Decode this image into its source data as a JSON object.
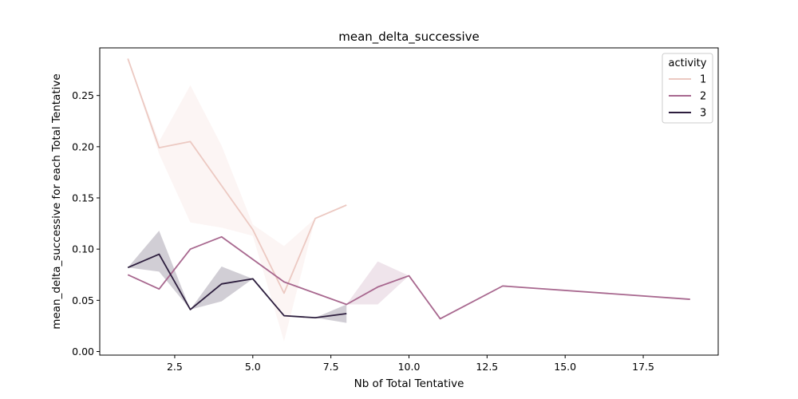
{
  "chart_data": {
    "type": "line",
    "title": "mean_delta_successive",
    "xlabel": "Nb of Total Tentative",
    "ylabel": "mean_delta_successive for each Total Tentative",
    "xlim": [
      0.1,
      19.9
    ],
    "ylim": [
      -0.0035,
      0.2965
    ],
    "x_ticks": [
      2.5,
      5.0,
      7.5,
      10.0,
      12.5,
      15.0,
      17.5
    ],
    "x_tick_labels": [
      "2.5",
      "5.0",
      "7.5",
      "10.0",
      "12.5",
      "15.0",
      "17.5"
    ],
    "y_ticks": [
      0.0,
      0.05,
      0.1,
      0.15,
      0.2,
      0.25
    ],
    "y_tick_labels": [
      "0.00",
      "0.05",
      "0.10",
      "0.15",
      "0.20",
      "0.25"
    ],
    "grid": false,
    "legend": {
      "title": "activity",
      "position": "top-right"
    },
    "series": [
      {
        "name": "1",
        "color": "#ecc9c2",
        "x": [
          1,
          2,
          3,
          4,
          5,
          6,
          7,
          8
        ],
        "y": [
          0.286,
          0.199,
          0.205,
          0.162,
          0.119,
          0.057,
          0.13,
          0.143
        ],
        "band_lower": [
          0.286,
          0.193,
          0.126,
          0.121,
          0.113,
          0.01,
          0.13,
          0.143
        ],
        "band_upper": [
          0.286,
          0.205,
          0.26,
          0.201,
          0.124,
          0.103,
          0.13,
          0.143
        ]
      },
      {
        "name": "2",
        "color": "#a8688f",
        "x": [
          1,
          2,
          3,
          4,
          5,
          6,
          7,
          8,
          9,
          10,
          11,
          13,
          19
        ],
        "y": [
          0.075,
          0.061,
          0.1,
          0.112,
          0.09,
          0.068,
          0.057,
          0.046,
          0.063,
          0.074,
          0.032,
          0.064,
          0.051
        ],
        "band_lower": [
          0.075,
          0.061,
          0.1,
          0.112,
          0.09,
          0.068,
          0.057,
          0.046,
          0.046,
          0.074,
          0.032,
          0.064,
          0.051
        ],
        "band_upper": [
          0.075,
          0.061,
          0.1,
          0.112,
          0.09,
          0.068,
          0.057,
          0.046,
          0.088,
          0.074,
          0.032,
          0.064,
          0.051
        ]
      },
      {
        "name": "3",
        "color": "#2d1e3e",
        "x": [
          1,
          2,
          3,
          4,
          5,
          6,
          7,
          8
        ],
        "y": [
          0.082,
          0.095,
          0.041,
          0.066,
          0.071,
          0.035,
          0.033,
          0.037
        ],
        "band_lower": [
          0.082,
          0.078,
          0.041,
          0.049,
          0.071,
          0.035,
          0.033,
          0.028
        ],
        "band_upper": [
          0.082,
          0.118,
          0.041,
          0.083,
          0.071,
          0.035,
          0.033,
          0.046
        ]
      }
    ]
  }
}
